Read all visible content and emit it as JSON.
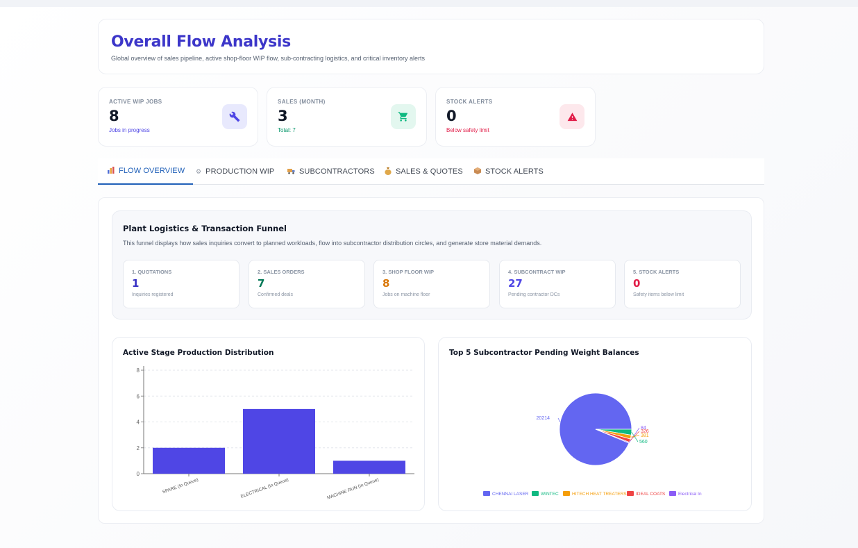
{
  "header": {
    "title": "Overall Flow Analysis",
    "subtitle": "Global overview of sales pipeline, active shop-floor WIP flow, sub-contracting logistics, and critical inventory alerts"
  },
  "kpis": [
    {
      "label": "ACTIVE WIP JOBS",
      "value": "8",
      "note": "Jobs in progress",
      "note_color": "#4f46e5",
      "icon": "wrench-icon",
      "icon_bg": "#e8e9fd",
      "icon_color": "#4f46e5"
    },
    {
      "label": "SALES (MONTH)",
      "value": "3",
      "note": "Total: 7",
      "note_color": "#059669",
      "icon": "cart-icon",
      "icon_bg": "#e3f7ef",
      "icon_color": "#10b981"
    },
    {
      "label": "STOCK ALERTS",
      "value": "0",
      "note": "Below safety limit",
      "note_color": "#e11d48",
      "icon": "warning-icon",
      "icon_bg": "#fde8ec",
      "icon_color": "#e11d48"
    }
  ],
  "tabs": [
    {
      "label": "FLOW OVERVIEW",
      "icon": "chart-icon",
      "glyph": "▮▮",
      "active": true
    },
    {
      "label": "PRODUCTION WIP",
      "icon": "gear-icon",
      "glyph": "⚙",
      "active": false
    },
    {
      "label": "SUBCONTRACTORS",
      "icon": "truck-icon",
      "glyph": "▬",
      "active": false
    },
    {
      "label": "SALES & QUOTES",
      "icon": "money-bag-icon",
      "glyph": "●",
      "active": false
    },
    {
      "label": "STOCK ALERTS",
      "icon": "box-icon",
      "glyph": "■",
      "active": false
    }
  ],
  "funnel": {
    "title": "Plant Logistics & Transaction Funnel",
    "description": "This funnel displays how sales inquiries convert to planned workloads, flow into subcontractor distribution circles, and generate store material demands.",
    "stages": [
      {
        "label": "1. QUOTATIONS",
        "value": "1",
        "note": "Inquiries registered",
        "color": "#3730c4"
      },
      {
        "label": "2. SALES ORDERS",
        "value": "7",
        "note": "Confirmed deals",
        "color": "#047857"
      },
      {
        "label": "3. SHOP FLOOR WIP",
        "value": "8",
        "note": "Jobs on machine floor",
        "color": "#d97706"
      },
      {
        "label": "4. SUBCONTRACT WIP",
        "value": "27",
        "note": "Pending contractor DCs",
        "color": "#4f46e5"
      },
      {
        "label": "5. STOCK ALERTS",
        "value": "0",
        "note": "Safety items below limit",
        "color": "#e11d48"
      }
    ]
  },
  "charts": {
    "bar_title": "Active Stage Production Distribution",
    "pie_title": "Top 5 Subcontractor Pending Weight Balances"
  },
  "chart_data": [
    {
      "type": "bar",
      "title": "Active Stage Production Distribution",
      "categories": [
        "SPARE (In Queue)",
        "ELECTRICAL (In Queue)",
        "MACHINE RUN (In Queue)"
      ],
      "values": [
        2,
        5,
        1
      ],
      "ylim": [
        0,
        8
      ],
      "yticks": [
        0,
        2,
        4,
        6,
        8
      ],
      "grid": true,
      "color": "#4f46e5"
    },
    {
      "type": "pie",
      "title": "Top 5 Subcontractor Pending Weight Balances",
      "labels": [
        "CHENNAI LASER",
        "WINTEC",
        "HITECH HEAT TREATERS",
        "IDEAL COATS",
        "Electrical In"
      ],
      "values": [
        20214,
        560,
        381,
        326,
        84
      ],
      "colors": [
        "#6366f1",
        "#10b981",
        "#f59e0b",
        "#ef4444",
        "#8b5cf6"
      ],
      "legend": "bottom"
    }
  ]
}
